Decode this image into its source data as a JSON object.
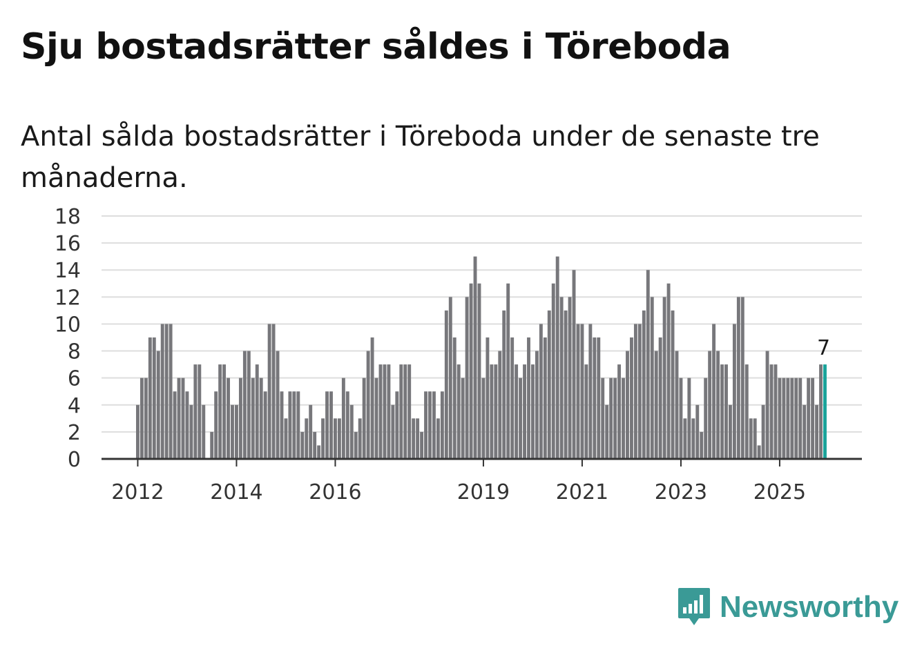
{
  "header": {
    "title": "Sju bostadsrätter såldes i Töreboda",
    "subtitle": "Antal sålda bostadsrätter i Töreboda under de senaste tre månaderna."
  },
  "brand": {
    "name": "Newsworthy",
    "color": "#3a9a96",
    "icon": "bar-chart-pin-icon"
  },
  "colors": {
    "bar": "#77777b",
    "highlight": "#1aa39a",
    "grid": "#dddddd",
    "axis": "#333333"
  },
  "chart_data": {
    "type": "bar",
    "title": "Sju bostadsrätter såldes i Töreboda",
    "xlabel": "",
    "ylabel": "",
    "ylim": [
      0,
      18
    ],
    "yticks": [
      0,
      2,
      4,
      6,
      8,
      10,
      12,
      14,
      16,
      18
    ],
    "grid": true,
    "start": "2012-01",
    "frequency": "monthly",
    "xtick_labels": [
      {
        "label": "2012",
        "index": 0
      },
      {
        "label": "2014",
        "index": 24
      },
      {
        "label": "2016",
        "index": 48
      },
      {
        "label": "2019",
        "index": 84
      },
      {
        "label": "2021",
        "index": 108
      },
      {
        "label": "2023",
        "index": 132
      },
      {
        "label": "2025",
        "index": 156
      }
    ],
    "values": [
      4,
      6,
      6,
      9,
      9,
      8,
      10,
      10,
      10,
      5,
      6,
      6,
      5,
      4,
      7,
      7,
      4,
      0,
      2,
      5,
      7,
      7,
      6,
      4,
      4,
      6,
      8,
      8,
      6,
      7,
      6,
      5,
      10,
      10,
      8,
      5,
      3,
      5,
      5,
      5,
      2,
      3,
      4,
      2,
      1,
      3,
      5,
      5,
      3,
      3,
      6,
      5,
      4,
      2,
      3,
      6,
      8,
      9,
      6,
      7,
      7,
      7,
      4,
      5,
      7,
      7,
      7,
      3,
      3,
      2,
      5,
      5,
      5,
      3,
      5,
      11,
      12,
      9,
      7,
      6,
      12,
      13,
      15,
      13,
      6,
      9,
      7,
      7,
      8,
      11,
      13,
      9,
      7,
      6,
      7,
      9,
      7,
      8,
      10,
      9,
      11,
      13,
      15,
      12,
      11,
      12,
      14,
      10,
      10,
      7,
      10,
      9,
      9,
      6,
      4,
      6,
      6,
      7,
      6,
      8,
      9,
      10,
      10,
      11,
      14,
      12,
      8,
      9,
      12,
      13,
      11,
      8,
      6,
      3,
      6,
      3,
      4,
      2,
      6,
      8,
      10,
      8,
      7,
      7,
      4,
      10,
      12,
      12,
      7,
      3,
      3,
      1,
      4,
      8,
      7,
      7,
      6,
      6,
      6,
      6,
      6,
      6,
      4,
      6,
      6,
      4,
      7,
      7
    ],
    "highlight_index": 167,
    "highlight_label": "7"
  }
}
